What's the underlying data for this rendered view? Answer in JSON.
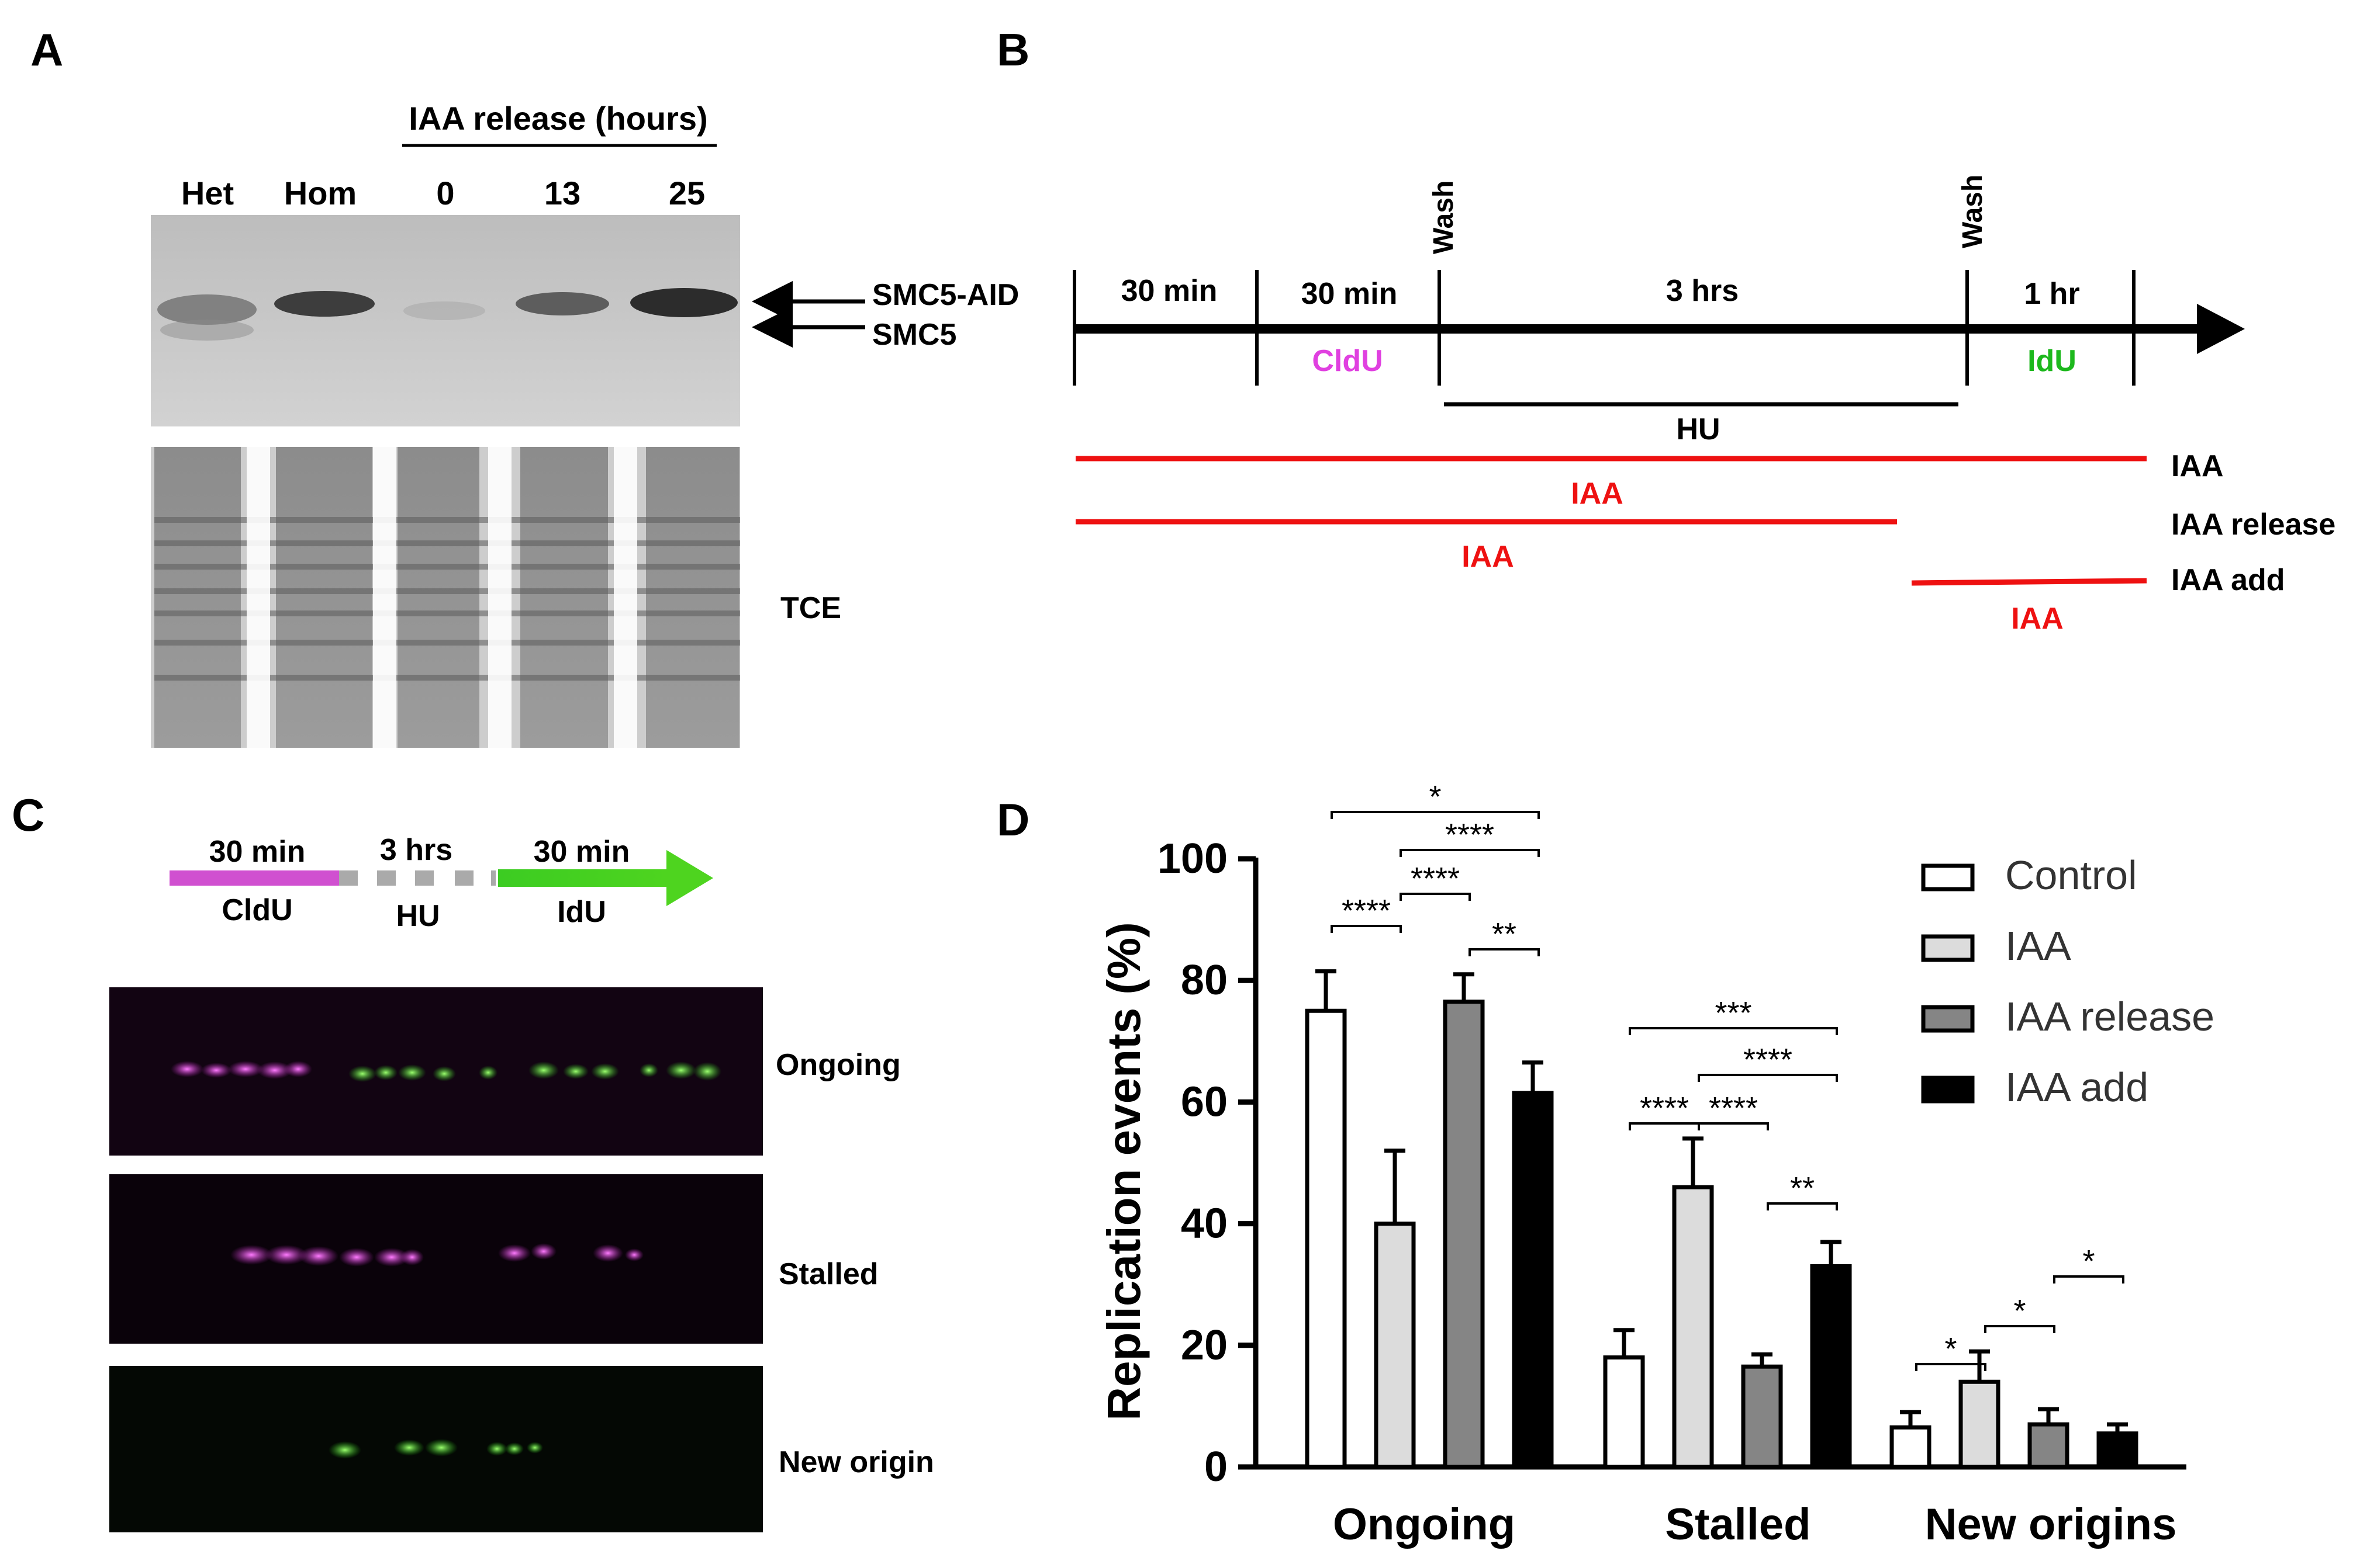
{
  "panels": {
    "a": "A",
    "b": "B",
    "c": "C",
    "d": "D"
  },
  "panel_a": {
    "header": "IAA release (hours)",
    "lanes": [
      "Het",
      "Hom",
      "0",
      "13",
      "25"
    ],
    "arrow_labels": [
      "SMC5-AID",
      "SMC5"
    ],
    "loading_label": "TCE"
  },
  "panel_b": {
    "wash": [
      "Wash",
      "Wash"
    ],
    "durations": [
      "30 min",
      "30 min",
      "3 hrs",
      "1 hr"
    ],
    "cldu": "CldU",
    "idu": "IdU",
    "hu": "HU",
    "iaa_bars": [
      "IAA",
      "IAA",
      "IAA"
    ],
    "conditions": [
      "IAA",
      "IAA release",
      "IAA add"
    ],
    "colors": {
      "cldu": "#e040e0",
      "idu": "#1db81d",
      "iaa": "#ee1111"
    }
  },
  "panel_c": {
    "durations": [
      "30 min",
      "3 hrs",
      "30 min"
    ],
    "labels": [
      "CldU",
      "HU",
      "IdU"
    ],
    "fibers": [
      "Ongoing",
      "Stalled",
      "New origin"
    ],
    "colors": {
      "cldu": "#d050d0",
      "idu": "#3ccc22",
      "hu": "#aaaaaa"
    }
  },
  "chart_data": {
    "type": "bar",
    "ylabel": "Replication events (%)",
    "ylim": [
      0,
      100
    ],
    "yticks": [
      0,
      20,
      40,
      60,
      80,
      100
    ],
    "categories": [
      "Ongoing",
      "Stalled",
      "New origins"
    ],
    "series": [
      {
        "name": "Control",
        "color": "#ffffff",
        "values": [
          75,
          18,
          6.5
        ],
        "errors": [
          6.5,
          4.5,
          2.5
        ]
      },
      {
        "name": "IAA",
        "color": "#dcdcdc",
        "values": [
          40,
          46,
          14
        ],
        "errors": [
          12,
          8,
          5
        ]
      },
      {
        "name": "IAA release",
        "color": "#858585",
        "values": [
          76.5,
          16.5,
          7
        ],
        "errors": [
          4.5,
          2,
          2.5
        ]
      },
      {
        "name": "IAA add",
        "color": "#000000",
        "values": [
          61.5,
          33,
          5.5
        ],
        "errors": [
          5,
          4,
          1.5
        ]
      }
    ],
    "significance": [
      {
        "group": 0,
        "from": 0,
        "to": 3,
        "label": "*"
      },
      {
        "group": 0,
        "from": 1,
        "to": 3,
        "label": "****"
      },
      {
        "group": 0,
        "from": 1,
        "to": 2,
        "label": "****"
      },
      {
        "group": 0,
        "from": 0,
        "to": 1,
        "label": "****"
      },
      {
        "group": 0,
        "from": 2,
        "to": 3,
        "label": "**"
      },
      {
        "group": 1,
        "from": 0,
        "to": 3,
        "label": "***"
      },
      {
        "group": 1,
        "from": 1,
        "to": 3,
        "label": "****"
      },
      {
        "group": 1,
        "from": 0,
        "to": 1,
        "label": "****"
      },
      {
        "group": 1,
        "from": 1,
        "to": 2,
        "label": "****"
      },
      {
        "group": 1,
        "from": 2,
        "to": 3,
        "label": "**"
      },
      {
        "group": 2,
        "from": 2,
        "to": 3,
        "label": "*"
      },
      {
        "group": 2,
        "from": 1,
        "to": 2,
        "label": "*"
      },
      {
        "group": 2,
        "from": 0,
        "to": 1,
        "label": "*"
      }
    ]
  }
}
